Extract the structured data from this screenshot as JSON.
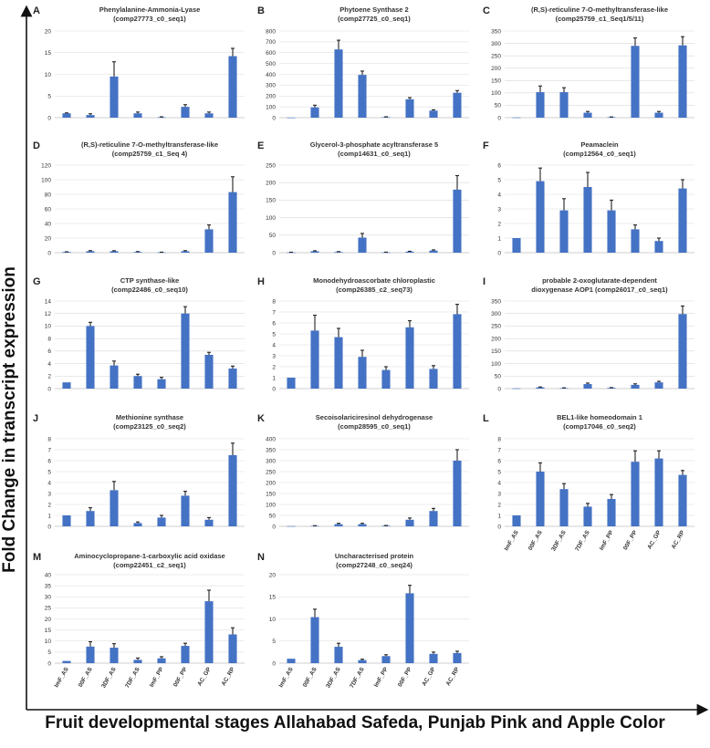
{
  "figure": {
    "y_label": "Fold Change in transcript expression",
    "x_label": "Fruit developmental stages Allahabad Safeda, Punjab Pink and Apple Color",
    "colors": {
      "bar": "#4472c4",
      "error": "#222222",
      "grid": "#d9d9d9"
    }
  },
  "chart_data": [
    {
      "type": "bar",
      "letter": "A",
      "title": [
        "Phenylalanine-Ammonia-Lyase",
        "(comp27773_c0_seq1)"
      ],
      "categories": [
        "ImF_AS",
        "00F_AS",
        "3DF_AS",
        "7DF_AS",
        "ImF_PP",
        "00F_PP",
        "AC_GP",
        "AC_RP"
      ],
      "show_categories": false,
      "values": [
        1,
        0.6,
        9.5,
        1,
        0.1,
        2.5,
        1,
        14.2
      ],
      "errors": [
        0.1,
        0.3,
        3.4,
        0.3,
        0.1,
        0.5,
        0.3,
        1.8
      ],
      "ylim": [
        0,
        20
      ],
      "yticks": [
        0,
        5,
        10,
        15,
        20
      ]
    },
    {
      "type": "bar",
      "letter": "B",
      "title": [
        "Phytoene Synthase 2",
        "(comp27725_c0_seq1)"
      ],
      "categories": [
        "ImF_AS",
        "00F_AS",
        "3DF_AS",
        "7DF_AS",
        "ImF_PP",
        "00F_PP",
        "AC_GP",
        "AC_RP"
      ],
      "show_categories": false,
      "values": [
        1,
        95,
        630,
        395,
        5,
        170,
        65,
        230
      ],
      "errors": [
        0,
        20,
        85,
        35,
        3,
        15,
        8,
        20
      ],
      "ylim": [
        0,
        800
      ],
      "yticks": [
        0,
        100,
        200,
        300,
        400,
        500,
        600,
        700,
        800
      ]
    },
    {
      "type": "bar",
      "letter": "C",
      "title": [
        "(R,S)-reticuline 7-O-methyltransferase-like",
        "(comp25759_c1_Seq1/5/11)"
      ],
      "categories": [
        "ImF_AS",
        "00F_AS",
        "3DF_AS",
        "7DF_AS",
        "ImF_PP",
        "00F_PP",
        "AC_GP",
        "AC_RP"
      ],
      "show_categories": false,
      "values": [
        1,
        103,
        103,
        20,
        2,
        290,
        20,
        292
      ],
      "errors": [
        0,
        25,
        18,
        5,
        1,
        32,
        5,
        35
      ],
      "ylim": [
        0,
        350
      ],
      "yticks": [
        0,
        50,
        100,
        150,
        200,
        250,
        300,
        350
      ]
    },
    {
      "type": "bar",
      "letter": "D",
      "title": [
        "(R,S)-reticuline 7-O-methyltransferase-like",
        "(comp25759_c1_Seq 4)"
      ],
      "categories": [
        "ImF_AS",
        "00F_AS",
        "3DF_AS",
        "7DF_AS",
        "ImF_PP",
        "00F_PP",
        "AC_GP",
        "AC_RP"
      ],
      "show_categories": false,
      "values": [
        1,
        2,
        2,
        1,
        0.5,
        2,
        32,
        83
      ],
      "errors": [
        0.2,
        0.8,
        0.7,
        0.5,
        0.2,
        0.8,
        6,
        21
      ],
      "ylim": [
        0,
        120
      ],
      "yticks": [
        0,
        20,
        40,
        60,
        80,
        100,
        120
      ]
    },
    {
      "type": "bar",
      "letter": "E",
      "title": [
        "Glycerol-3-phosphate acyltransferase 5",
        "(comp14631_c0_seq1)"
      ],
      "categories": [
        "ImF_AS",
        "00F_AS",
        "3DF_AS",
        "7DF_AS",
        "ImF_PP",
        "00F_PP",
        "AC_GP",
        "AC_RP"
      ],
      "show_categories": false,
      "values": [
        1,
        4,
        2,
        43,
        1,
        3,
        6,
        180
      ],
      "errors": [
        0.3,
        1.5,
        1,
        12,
        0.5,
        1,
        2,
        40
      ],
      "ylim": [
        0,
        250
      ],
      "yticks": [
        0,
        50,
        100,
        150,
        200,
        250
      ]
    },
    {
      "type": "bar",
      "letter": "F",
      "title": [
        "Peamaclein",
        "(comp12564_c0_seq1)"
      ],
      "categories": [
        "ImF_AS",
        "00F_AS",
        "3DF_AS",
        "7DF_AS",
        "ImF_PP",
        "00F_PP",
        "AC_GP",
        "AC_RP"
      ],
      "show_categories": false,
      "values": [
        1,
        4.9,
        2.9,
        4.5,
        2.9,
        1.6,
        0.8,
        4.4
      ],
      "errors": [
        0,
        0.9,
        0.8,
        1,
        0.7,
        0.3,
        0.2,
        0.6
      ],
      "ylim": [
        0,
        6
      ],
      "yticks": [
        0,
        1,
        2,
        3,
        4,
        5,
        6
      ]
    },
    {
      "type": "bar",
      "letter": "G",
      "title": [
        "CTP synthase-like",
        "(comp22486_c0_seq10)"
      ],
      "categories": [
        "ImF_AS",
        "00F_AS",
        "3DF_AS",
        "7DF_AS",
        "ImF_PP",
        "00F_PP",
        "AC_GP",
        "AC_RP"
      ],
      "show_categories": false,
      "values": [
        1,
        10,
        3.7,
        2,
        1.5,
        12,
        5.4,
        3.2
      ],
      "errors": [
        0,
        0.6,
        0.7,
        0.3,
        0.3,
        1.1,
        0.4,
        0.4
      ],
      "ylim": [
        0,
        14
      ],
      "yticks": [
        0,
        2,
        4,
        6,
        8,
        10,
        12,
        14
      ]
    },
    {
      "type": "bar",
      "letter": "H",
      "title": [
        "Monodehydroascorbate chloroplastic",
        "(comp26385_c2_seq73)"
      ],
      "categories": [
        "ImF_AS",
        "00F_AS",
        "3DF_AS",
        "7DF_AS",
        "ImF_PP",
        "00F_PP",
        "AC_GP",
        "AC_RP"
      ],
      "show_categories": false,
      "values": [
        1,
        5.3,
        4.7,
        2.9,
        1.7,
        5.6,
        1.8,
        6.8
      ],
      "errors": [
        0,
        1.4,
        0.8,
        0.6,
        0.3,
        0.6,
        0.3,
        0.9
      ],
      "ylim": [
        0,
        8
      ],
      "yticks": [
        0,
        1,
        2,
        3,
        4,
        5,
        6,
        7,
        8
      ]
    },
    {
      "type": "bar",
      "letter": "I",
      "title": [
        "probable 2-oxoglutarate-dependent",
        "dioxygenase AOP1 (comp26017_c0_seq1)"
      ],
      "categories": [
        "ImF_AS",
        "00F_AS",
        "3DF_AS",
        "7DF_AS",
        "ImF_PP",
        "00F_PP",
        "AC_GP",
        "AC_RP"
      ],
      "show_categories": false,
      "values": [
        1,
        5,
        2,
        18,
        3,
        15,
        25,
        298
      ],
      "errors": [
        0,
        1.5,
        1,
        4,
        1,
        4,
        4,
        32
      ],
      "ylim": [
        0,
        350
      ],
      "yticks": [
        0,
        50,
        100,
        150,
        200,
        250,
        300,
        350
      ]
    },
    {
      "type": "bar",
      "letter": "J",
      "title": [
        "Methionine synthase",
        "(comp23125_c0_seq2)"
      ],
      "categories": [
        "ImF_AS",
        "00F_AS",
        "3DF_AS",
        "7DF_AS",
        "ImF_PP",
        "00F_PP",
        "AC_GP",
        "AC_RP"
      ],
      "show_categories": false,
      "values": [
        1,
        1.4,
        3.3,
        0.3,
        0.8,
        2.8,
        0.6,
        6.5
      ],
      "errors": [
        0,
        0.3,
        0.8,
        0.1,
        0.2,
        0.4,
        0.2,
        1.1
      ],
      "ylim": [
        0,
        8
      ],
      "yticks": [
        0,
        1,
        2,
        3,
        4,
        5,
        6,
        7,
        8
      ]
    },
    {
      "type": "bar",
      "letter": "K",
      "title": [
        "Secoisolariciresinol dehydrogenase",
        "(comp28595_c0_seq1)"
      ],
      "categories": [
        "ImF_AS",
        "00F_AS",
        "3DF_AS",
        "7DF_AS",
        "ImF_PP",
        "00F_PP",
        "AC_GP",
        "AC_RP"
      ],
      "show_categories": false,
      "values": [
        1,
        2,
        10,
        10,
        3,
        30,
        70,
        300
      ],
      "errors": [
        0,
        1,
        4,
        4,
        1,
        8,
        12,
        50
      ],
      "ylim": [
        0,
        400
      ],
      "yticks": [
        0,
        50,
        100,
        150,
        200,
        250,
        300,
        350,
        400
      ]
    },
    {
      "type": "bar",
      "letter": "L",
      "title": [
        "BEL1-like homeodomain 1",
        "(comp17046_c0_seq2)"
      ],
      "categories": [
        "ImF_AS",
        "00F_AS",
        "3DF_AS",
        "7DF_AS",
        "ImF_PP",
        "00F_PP",
        "AC_GP",
        "AC_RP"
      ],
      "show_categories": true,
      "values": [
        1,
        5,
        3.4,
        1.8,
        2.5,
        5.9,
        6.2,
        4.7
      ],
      "errors": [
        0,
        0.8,
        0.5,
        0.3,
        0.4,
        1,
        0.7,
        0.4
      ],
      "ylim": [
        0,
        8
      ],
      "yticks": [
        0,
        1,
        2,
        3,
        4,
        5,
        6,
        7,
        8
      ]
    },
    {
      "type": "bar",
      "letter": "M",
      "title": [
        "Aminocyclopropane-1-carboxylic acid oxidase",
        "(comp22451_c2_seq1)"
      ],
      "categories": [
        "ImF_AS",
        "00F_AS",
        "3DF_AS",
        "7DF_AS",
        "ImF_PP",
        "00F_PP",
        "AC_GP",
        "AC_RP"
      ],
      "show_categories": true,
      "values": [
        1,
        7.5,
        7,
        1.5,
        2.2,
        7.8,
        28,
        13
      ],
      "errors": [
        0,
        2.2,
        1.8,
        0.8,
        0.7,
        1.2,
        5,
        3
      ],
      "ylim": [
        0,
        40
      ],
      "yticks": [
        0,
        5,
        10,
        15,
        20,
        25,
        30,
        35,
        40
      ]
    },
    {
      "type": "bar",
      "letter": "N",
      "title": [
        "Uncharacterised protein",
        "(comp27248_c0_seq24)"
      ],
      "categories": [
        "ImF_AS",
        "00F_AS",
        "3DF_AS",
        "7DF_AS",
        "ImF_PP",
        "00F_PP",
        "AC_GP",
        "AC_RP"
      ],
      "show_categories": true,
      "values": [
        1,
        10.4,
        3.7,
        0.7,
        1.6,
        15.8,
        2.1,
        2.3
      ],
      "errors": [
        0,
        1.8,
        0.8,
        0.2,
        0.3,
        1.8,
        0.4,
        0.4
      ],
      "ylim": [
        0,
        20
      ],
      "yticks": [
        0,
        5,
        10,
        15,
        20
      ]
    }
  ]
}
